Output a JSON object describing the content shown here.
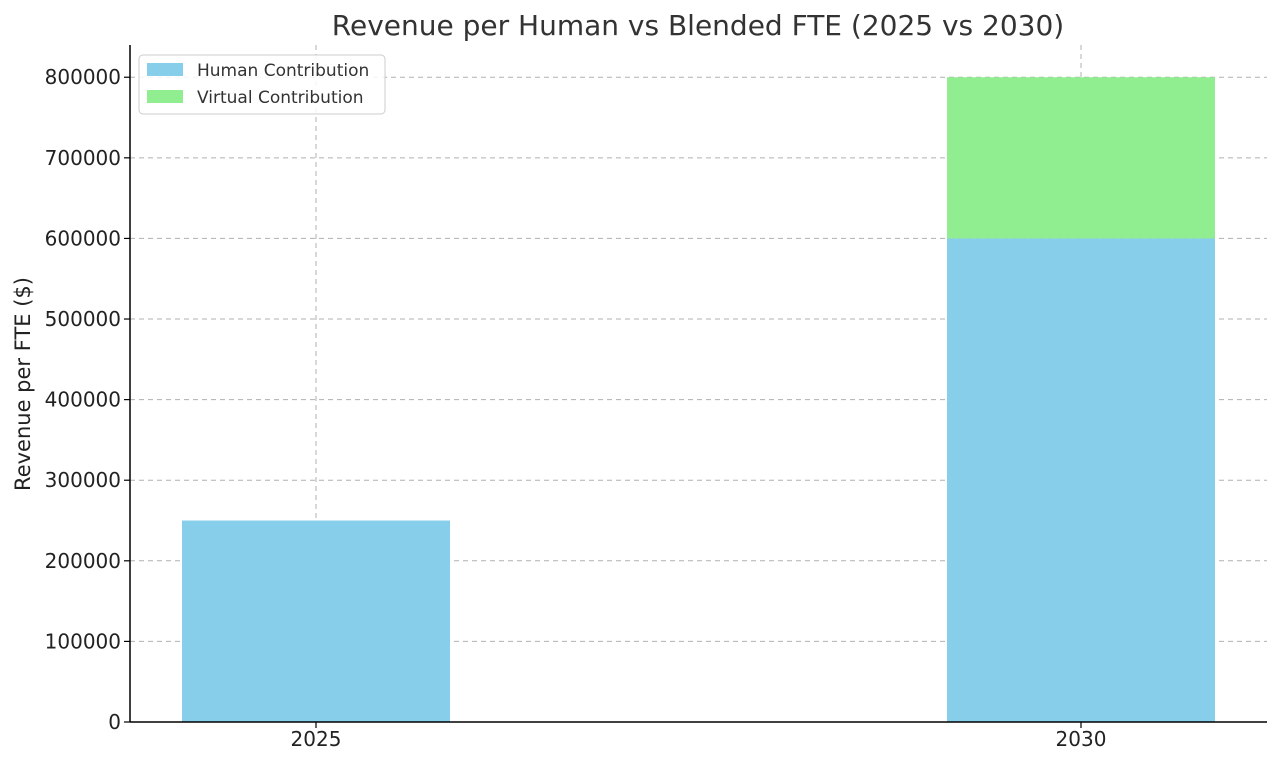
{
  "chart_data": {
    "type": "bar",
    "stacked": true,
    "title": "Revenue per Human vs Blended FTE (2025 vs 2030)",
    "xlabel": "",
    "ylabel": "Revenue per FTE ($)",
    "categories": [
      "2025",
      "2030"
    ],
    "series": [
      {
        "name": "Human Contribution",
        "values": [
          250000,
          600000
        ],
        "color": "#87ceeb"
      },
      {
        "name": "Virtual Contribution",
        "values": [
          0,
          200000
        ],
        "color": "#90ee90"
      }
    ],
    "ylim": [
      0,
      840000
    ],
    "yticks": [
      0,
      100000,
      200000,
      300000,
      400000,
      500000,
      600000,
      700000,
      800000
    ],
    "ytick_labels": [
      "0",
      "100000",
      "200000",
      "300000",
      "400000",
      "500000",
      "600000",
      "700000",
      "800000"
    ],
    "grid": true,
    "legend_position": "top-left"
  }
}
